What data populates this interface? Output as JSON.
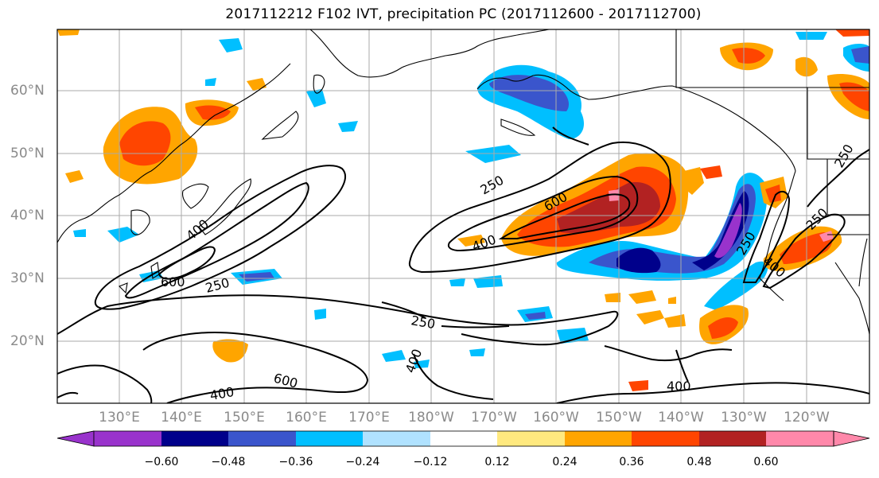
{
  "title": "2017112212 F102 IVT, precipitation PC (2017112600 - 2017112700)",
  "lat_labels": [
    "60°N",
    "50°N",
    "40°N",
    "30°N",
    "20°N"
  ],
  "lon_labels": [
    "130°E",
    "140°E",
    "150°E",
    "160°E",
    "170°E",
    "180°W",
    "170°W",
    "160°W",
    "150°W",
    "140°W",
    "130°W",
    "120°W"
  ],
  "contour_labels": [
    "250",
    "400",
    "600",
    "250",
    "600",
    "400",
    "250",
    "400",
    "250",
    "400",
    "250",
    "600",
    "400",
    "400",
    "250"
  ],
  "colorbar": {
    "ticks": [
      "−0.60",
      "−0.48",
      "−0.36",
      "−0.24",
      "−0.12",
      "0.12",
      "0.24",
      "0.36",
      "0.48",
      "0.60"
    ],
    "colors": [
      "#9933cc",
      "#00008b",
      "#3a55cc",
      "#00bfff",
      "#b0e2ff",
      "#ffffff",
      "#ffe97f",
      "#ffa500",
      "#ff4500",
      "#b22222",
      "#ff88aa"
    ]
  }
}
